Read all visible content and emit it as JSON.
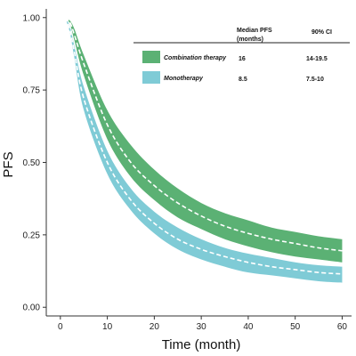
{
  "chart_data": {
    "type": "area",
    "title": "",
    "xlabel": "Time (month)",
    "ylabel": "PFS",
    "xlim": [
      -3,
      62
    ],
    "ylim": [
      -0.03,
      1.03
    ],
    "x_ticks": [
      0,
      10,
      20,
      30,
      40,
      50,
      60
    ],
    "y_ticks": [
      0.0,
      0.25,
      0.5,
      0.75,
      1.0
    ],
    "y_tick_labels": [
      "0.00",
      "0.25",
      "0.50",
      "0.75",
      "1.00"
    ],
    "grid": false,
    "legend_position": "top-right",
    "table_headers": {
      "median": "Median PFS\n(months)",
      "ci": "90% CI"
    },
    "series": [
      {
        "name": "Combination therapy",
        "color": "#5bb174",
        "median_pfs": "16",
        "ci": "14-19.5",
        "x": [
          1,
          2,
          3,
          5,
          10,
          15,
          20,
          25,
          30,
          35,
          40,
          45,
          50,
          55,
          60
        ],
        "median": [
          1.0,
          0.985,
          0.94,
          0.84,
          0.63,
          0.5,
          0.42,
          0.36,
          0.315,
          0.28,
          0.255,
          0.235,
          0.22,
          0.205,
          0.195
        ],
        "upper": [
          1.0,
          0.99,
          0.96,
          0.87,
          0.68,
          0.56,
          0.475,
          0.41,
          0.36,
          0.325,
          0.3,
          0.275,
          0.26,
          0.245,
          0.235
        ],
        "lower": [
          1.0,
          0.98,
          0.92,
          0.8,
          0.58,
          0.45,
          0.37,
          0.31,
          0.27,
          0.235,
          0.21,
          0.19,
          0.175,
          0.165,
          0.155
        ]
      },
      {
        "name": "Monotherapy",
        "color": "#7fcbd6",
        "median_pfs": "8.5",
        "ci": "7.5-10",
        "x": [
          1,
          2,
          3,
          5,
          10,
          15,
          20,
          25,
          30,
          35,
          40,
          45,
          50,
          55,
          60
        ],
        "median": [
          1.0,
          0.96,
          0.88,
          0.72,
          0.5,
          0.37,
          0.29,
          0.235,
          0.2,
          0.175,
          0.155,
          0.14,
          0.13,
          0.12,
          0.115
        ],
        "upper": [
          1.0,
          0.97,
          0.9,
          0.76,
          0.54,
          0.41,
          0.33,
          0.275,
          0.235,
          0.205,
          0.185,
          0.17,
          0.155,
          0.145,
          0.14
        ],
        "lower": [
          1.0,
          0.95,
          0.86,
          0.68,
          0.46,
          0.335,
          0.255,
          0.2,
          0.165,
          0.14,
          0.12,
          0.11,
          0.1,
          0.09,
          0.085
        ]
      }
    ]
  }
}
